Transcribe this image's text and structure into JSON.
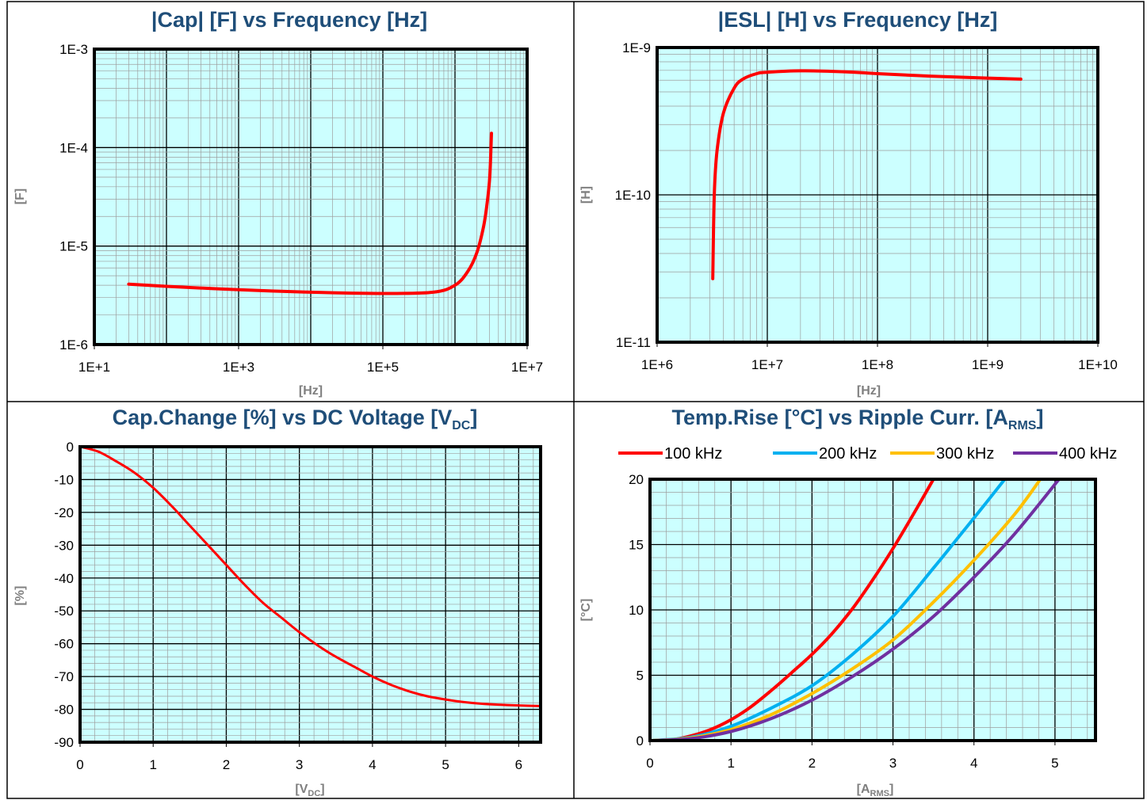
{
  "colors": {
    "plot_bg": "#CCFFFF",
    "grid_major": "#000000",
    "grid_minor": "#9e9e9e",
    "title": "#1F4E79",
    "axis_label": "#7f7f7f",
    "line_red": "#FF0000",
    "series_colors": [
      "#FF0000",
      "#00B0F0",
      "#FFC000",
      "#7030A0"
    ]
  },
  "chart_data": [
    {
      "type": "line",
      "title": "|Cap| [F] vs Frequency [Hz]",
      "xlabel": "[Hz]",
      "ylabel": "[F]",
      "xscale": "log",
      "yscale": "log",
      "xlim": [
        10,
        10000000
      ],
      "ylim": [
        1e-06,
        0.001
      ],
      "xticks": [
        "1E+1",
        "1E+3",
        "1E+5",
        "1E+7"
      ],
      "yticks": [
        "1E-6",
        "1E-5",
        "1E-4",
        "1E-3"
      ],
      "grid": true,
      "series": [
        {
          "color": "#FF0000",
          "x": [
            30,
            100,
            1000,
            10000,
            100000,
            500000,
            1000000,
            1500000,
            2000000,
            2500000,
            2800000,
            3000000,
            3100000,
            3200000
          ],
          "y": [
            4.1e-06,
            3.9e-06,
            3.6e-06,
            3.4e-06,
            3.3e-06,
            3.4e-06,
            4e-06,
            5.5e-06,
            8.5e-06,
            1.6e-05,
            2.8e-05,
            4.5e-05,
            7e-05,
            0.00014
          ]
        }
      ]
    },
    {
      "type": "line",
      "title": "|ESL| [H] vs Frequency [Hz]",
      "xlabel": "[Hz]",
      "ylabel": "[H]",
      "xscale": "log",
      "yscale": "log",
      "xlim": [
        1000000,
        10000000000
      ],
      "ylim": [
        1e-11,
        1e-09
      ],
      "xticks": [
        "1E+6",
        "1E+7",
        "1E+8",
        "1E+9",
        "1E+10"
      ],
      "yticks": [
        "1E-11",
        "1E-10",
        "1E-9"
      ],
      "grid": true,
      "series": [
        {
          "color": "#FF0000",
          "x": [
            3200000,
            3300000,
            3500000,
            4000000,
            5000000,
            6000000,
            8000000,
            10000000,
            20000000,
            50000000,
            100000000,
            300000000,
            1000000000,
            2000000000
          ],
          "y": [
            2.7e-11,
            1e-10,
            2e-10,
            3.6e-10,
            5.3e-10,
            6.1e-10,
            6.65e-10,
            6.8e-10,
            6.95e-10,
            6.85e-10,
            6.65e-10,
            6.4e-10,
            6.2e-10,
            6.1e-10
          ]
        }
      ]
    },
    {
      "type": "line",
      "title": "Cap.Change [%] vs DC Voltage [V",
      "title_sub": "DC",
      "title_end": "]",
      "xlabel": "[V",
      "xlabel_sub": "DC",
      "xlabel_end": "]",
      "ylabel": "[%]",
      "xlim": [
        0,
        6.3
      ],
      "ylim": [
        -90,
        0
      ],
      "xticks": [
        "0",
        "1",
        "2",
        "3",
        "4",
        "5",
        "6"
      ],
      "yticks": [
        "0",
        "-10",
        "-20",
        "-30",
        "-40",
        "-50",
        "-60",
        "-70",
        "-80",
        "-90"
      ],
      "grid": true,
      "series": [
        {
          "color": "#FF0000",
          "x": [
            0,
            0.25,
            0.5,
            0.75,
            1.0,
            1.25,
            1.5,
            1.75,
            2.0,
            2.25,
            2.5,
            2.75,
            3.0,
            3.25,
            3.5,
            3.75,
            4.0,
            4.25,
            4.5,
            4.75,
            5.0,
            5.25,
            5.5,
            5.75,
            6.0,
            6.3
          ],
          "y": [
            0,
            -1.5,
            -4.5,
            -8,
            -12.5,
            -18,
            -24,
            -30,
            -36,
            -42,
            -47.5,
            -52,
            -56.5,
            -60.5,
            -64,
            -67,
            -70,
            -72.5,
            -74.5,
            -76,
            -77,
            -77.8,
            -78.3,
            -78.6,
            -78.8,
            -79
          ]
        }
      ]
    },
    {
      "type": "line",
      "title": "Temp.Rise [°C] vs Ripple Curr. [A",
      "title_sub": "RMS",
      "title_end": "]",
      "xlabel": "[A",
      "xlabel_sub": "RMS",
      "xlabel_end": "]",
      "ylabel": "[°C]",
      "xlim": [
        0,
        5.5
      ],
      "ylim": [
        0,
        20
      ],
      "xticks": [
        "0",
        "1",
        "2",
        "3",
        "4",
        "5"
      ],
      "yticks": [
        "0",
        "5",
        "10",
        "15",
        "20"
      ],
      "grid": true,
      "legend_position": "top",
      "series": [
        {
          "name": "100 kHz",
          "color": "#FF0000",
          "x": [
            0,
            0.25,
            0.5,
            0.75,
            1.0,
            1.25,
            1.5,
            1.75,
            2.0,
            2.25,
            2.5,
            2.75,
            3.0,
            3.25,
            3.5
          ],
          "y": [
            0,
            0.05,
            0.35,
            0.85,
            1.6,
            2.6,
            3.85,
            5.2,
            6.6,
            8.2,
            10.1,
            12.3,
            14.7,
            17.3,
            20
          ]
        },
        {
          "name": "200 kHz",
          "color": "#00B0F0",
          "x": [
            0,
            0.5,
            1.0,
            1.5,
            2.0,
            2.5,
            3.0,
            3.5,
            3.8,
            4.1,
            4.38
          ],
          "y": [
            0,
            0.25,
            1.1,
            2.5,
            4.2,
            6.6,
            9.5,
            13.2,
            15.5,
            17.8,
            20
          ]
        },
        {
          "name": "300 kHz",
          "color": "#FFC000",
          "x": [
            0,
            0.5,
            1.0,
            1.5,
            2.0,
            2.5,
            3.0,
            3.5,
            4.0,
            4.5,
            4.82
          ],
          "y": [
            0,
            0.2,
            0.85,
            2.0,
            3.6,
            5.5,
            7.7,
            10.6,
            13.8,
            17.3,
            20
          ]
        },
        {
          "name": "400 kHz",
          "color": "#7030A0",
          "x": [
            0,
            0.5,
            1.0,
            1.5,
            2.0,
            2.5,
            3.0,
            3.5,
            4.0,
            4.5,
            5.05
          ],
          "y": [
            0,
            0.15,
            0.7,
            1.7,
            3.1,
            4.9,
            7.0,
            9.5,
            12.5,
            15.8,
            20
          ]
        }
      ]
    }
  ]
}
